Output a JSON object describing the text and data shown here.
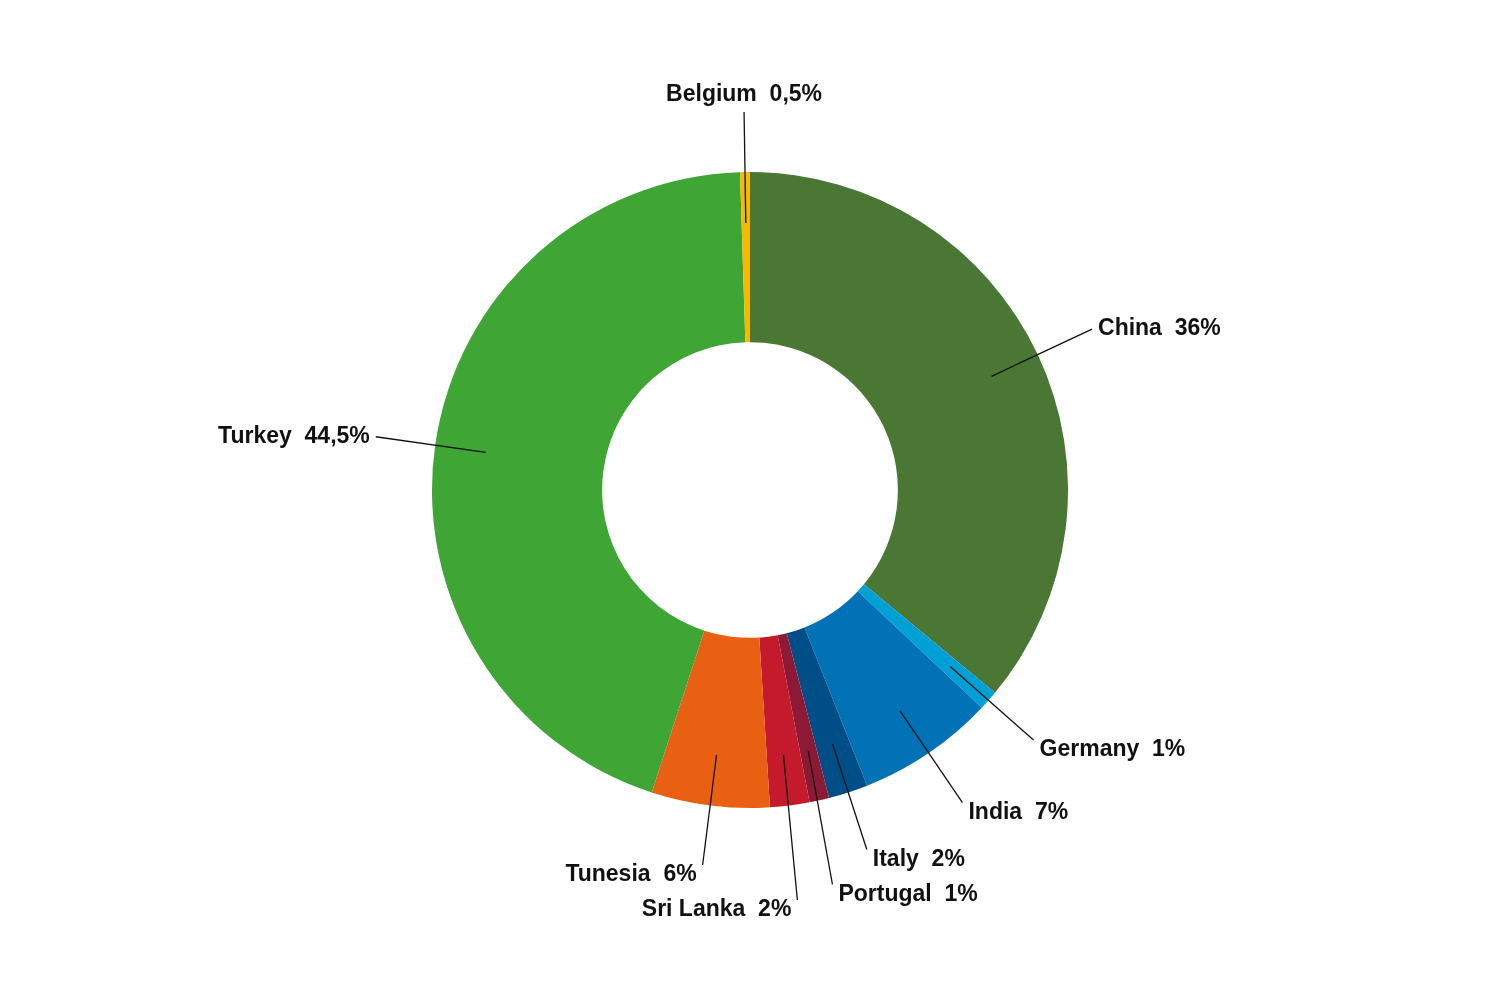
{
  "chart_data": {
    "type": "donut",
    "categories": [
      "China",
      "Germany",
      "India",
      "Italy",
      "Portugal",
      "Sri Lanka",
      "Tunesia",
      "Turkey",
      "Belgium"
    ],
    "values": [
      36,
      1,
      7,
      2,
      1,
      2,
      6,
      44.5,
      0.5
    ],
    "value_labels": [
      "36%",
      "1%",
      "7%",
      "2%",
      "1%",
      "2%",
      "6%",
      "44,5%",
      "0,5%"
    ],
    "colors": [
      "#4a7834",
      "#00a0d6",
      "#0072b5",
      "#004e87",
      "#8c1a36",
      "#c41a2b",
      "#e96012",
      "#3fa535",
      "#f6b800"
    ],
    "legend": false
  }
}
